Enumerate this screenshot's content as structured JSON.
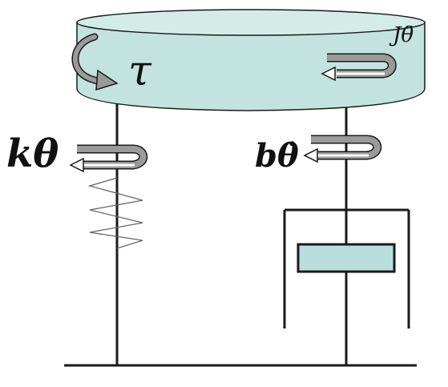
{
  "labels": {
    "torque": "τ",
    "inertia": "Jθ̈",
    "spring": "kθ",
    "damper": "bθ̇"
  },
  "colors": {
    "disc_fill": "#c3e3df",
    "disc_top": "#d4ece8",
    "piston_fill": "#b8dedd",
    "line": "#1a1a1a",
    "arrow_fill": "#9a9a9a",
    "arrow_inner": "#ffffff"
  }
}
